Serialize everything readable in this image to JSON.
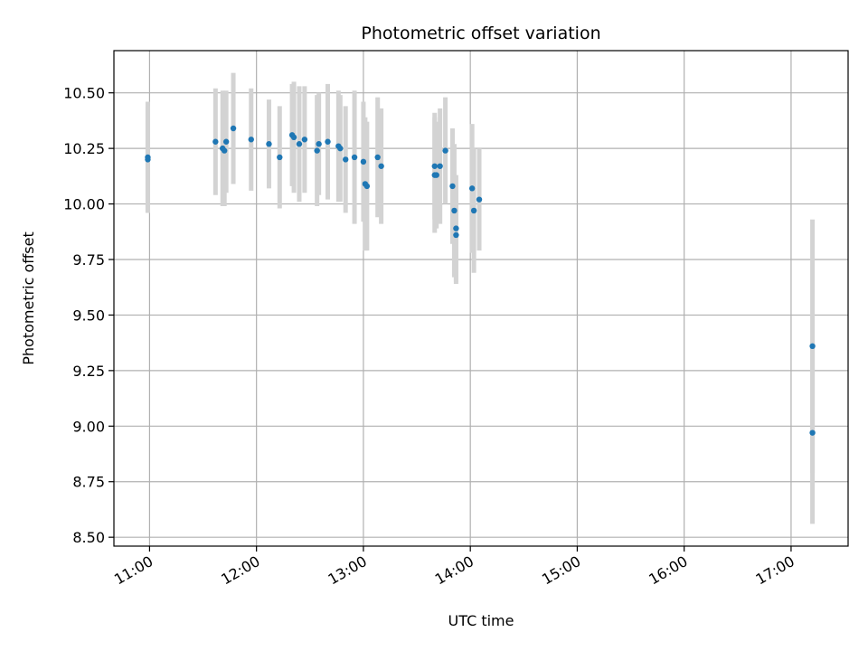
{
  "chart_data": {
    "type": "scatter",
    "title": "Photometric offset variation",
    "xlabel": "UTC time",
    "ylabel": "Photometric offset",
    "x_tick_labels": [
      "11:00",
      "12:00",
      "13:00",
      "14:00",
      "15:00",
      "16:00",
      "17:00"
    ],
    "y_tick_labels": [
      "8.50",
      "8.75",
      "9.00",
      "9.25",
      "9.50",
      "9.75",
      "10.00",
      "10.25",
      "10.50"
    ],
    "y_ticks": [
      8.5,
      8.75,
      9.0,
      9.25,
      9.5,
      9.75,
      10.0,
      10.25,
      10.5
    ],
    "xlim": [
      "10:40",
      "17:32"
    ],
    "ylim": [
      8.46,
      10.69
    ],
    "grid": true,
    "point_color": "#1f77b4",
    "errorbar_color": "#d3d3d3",
    "points": [
      {
        "x": "10:59",
        "y": 10.21,
        "err": 0.25
      },
      {
        "x": "10:59",
        "y": 10.2,
        "err": 0.24
      },
      {
        "x": "11:37",
        "y": 10.28,
        "err": 0.24
      },
      {
        "x": "11:41",
        "y": 10.25,
        "err": 0.26
      },
      {
        "x": "11:42",
        "y": 10.24,
        "err": 0.25
      },
      {
        "x": "11:43",
        "y": 10.28,
        "err": 0.23
      },
      {
        "x": "11:47",
        "y": 10.34,
        "err": 0.25
      },
      {
        "x": "11:57",
        "y": 10.29,
        "err": 0.23
      },
      {
        "x": "12:07",
        "y": 10.27,
        "err": 0.2
      },
      {
        "x": "12:13",
        "y": 10.21,
        "err": 0.23
      },
      {
        "x": "12:20",
        "y": 10.31,
        "err": 0.23
      },
      {
        "x": "12:21",
        "y": 10.3,
        "err": 0.25
      },
      {
        "x": "12:24",
        "y": 10.27,
        "err": 0.26
      },
      {
        "x": "12:27",
        "y": 10.29,
        "err": 0.24
      },
      {
        "x": "12:34",
        "y": 10.24,
        "err": 0.25
      },
      {
        "x": "12:35",
        "y": 10.27,
        "err": 0.23
      },
      {
        "x": "12:40",
        "y": 10.28,
        "err": 0.26
      },
      {
        "x": "12:46",
        "y": 10.26,
        "err": 0.25
      },
      {
        "x": "12:47",
        "y": 10.25,
        "err": 0.24
      },
      {
        "x": "12:50",
        "y": 10.2,
        "err": 0.24
      },
      {
        "x": "12:55",
        "y": 10.21,
        "err": 0.3
      },
      {
        "x": "13:00",
        "y": 10.19,
        "err": 0.27
      },
      {
        "x": "13:01",
        "y": 10.09,
        "err": 0.3
      },
      {
        "x": "13:02",
        "y": 10.08,
        "err": 0.29
      },
      {
        "x": "13:08",
        "y": 10.21,
        "err": 0.27
      },
      {
        "x": "13:10",
        "y": 10.17,
        "err": 0.26
      },
      {
        "x": "13:40",
        "y": 10.17,
        "err": 0.24
      },
      {
        "x": "13:40",
        "y": 10.13,
        "err": 0.26
      },
      {
        "x": "13:41",
        "y": 10.13,
        "err": 0.24
      },
      {
        "x": "13:43",
        "y": 10.17,
        "err": 0.26
      },
      {
        "x": "13:46",
        "y": 10.24,
        "err": 0.24
      },
      {
        "x": "13:50",
        "y": 10.08,
        "err": 0.26
      },
      {
        "x": "13:51",
        "y": 9.97,
        "err": 0.3
      },
      {
        "x": "13:52",
        "y": 9.86,
        "err": 0.22
      },
      {
        "x": "13:52",
        "y": 9.89,
        "err": 0.24
      },
      {
        "x": "14:01",
        "y": 10.07,
        "err": 0.29
      },
      {
        "x": "14:02",
        "y": 9.97,
        "err": 0.28
      },
      {
        "x": "14:05",
        "y": 10.02,
        "err": 0.23
      },
      {
        "x": "17:12",
        "y": 9.36,
        "err": 0.57
      },
      {
        "x": "17:12",
        "y": 8.97,
        "err": 0.41
      }
    ]
  }
}
